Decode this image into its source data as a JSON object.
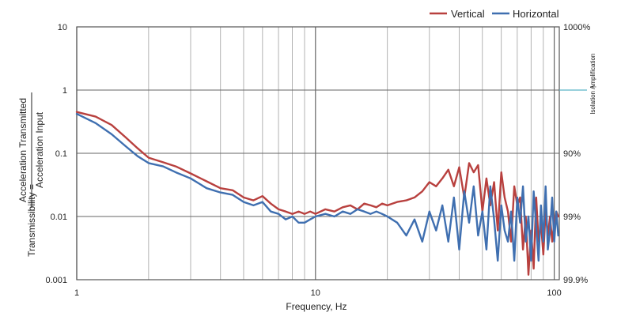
{
  "chart_data": {
    "type": "line",
    "xscale": "log",
    "yscale": "log",
    "xlim": [
      1,
      105
    ],
    "ylim": [
      0.001,
      10
    ],
    "xlabel": "Frequency, Hz",
    "ylabel_prefix": "Transmissibility =",
    "ylabel_numerator": "Acceleration Transmitted",
    "ylabel_denominator": "Acceleration Input",
    "x_ticks": [
      {
        "value": 1,
        "label": "1"
      },
      {
        "value": 10,
        "label": "10"
      },
      {
        "value": 100,
        "label": "100"
      }
    ],
    "y_ticks": [
      {
        "value": 10,
        "label": "10"
      },
      {
        "value": 1,
        "label": "1"
      },
      {
        "value": 0.1,
        "label": "0.1"
      },
      {
        "value": 0.01,
        "label": "0.01"
      },
      {
        "value": 0.001,
        "label": "0.001"
      }
    ],
    "right_ticks": [
      {
        "value": 10,
        "label": "1000%"
      },
      {
        "value": 0.1,
        "label": "90%"
      },
      {
        "value": 0.01,
        "label": "99%"
      },
      {
        "value": 0.001,
        "label": "99.9%"
      }
    ],
    "right_annotation": {
      "upper": "Amplification",
      "lower": "Isolation",
      "value": 1,
      "color": "#5bb3c6"
    },
    "legend_position": "top-right",
    "series": [
      {
        "name": "Vertical",
        "color": "#b8403e",
        "x": [
          1,
          1.2,
          1.4,
          1.6,
          1.8,
          2,
          2.3,
          2.6,
          3,
          3.5,
          4,
          4.5,
          5,
          5.5,
          6,
          6.5,
          7,
          7.5,
          8,
          8.5,
          9,
          9.5,
          10,
          11,
          12,
          13,
          14,
          15,
          16,
          17,
          18,
          19,
          20,
          22,
          24,
          26,
          28,
          30,
          32,
          34,
          36,
          38,
          40,
          42,
          44,
          46,
          48,
          50,
          52,
          54,
          56,
          58,
          60,
          62,
          64,
          66,
          68,
          70,
          72,
          74,
          76,
          78,
          80,
          82,
          84,
          86,
          88,
          90,
          92,
          94,
          96,
          98,
          100,
          102,
          104
        ],
        "values": [
          0.45,
          0.38,
          0.28,
          0.18,
          0.12,
          0.085,
          0.072,
          0.062,
          0.048,
          0.036,
          0.028,
          0.026,
          0.02,
          0.018,
          0.021,
          0.016,
          0.013,
          0.012,
          0.011,
          0.012,
          0.011,
          0.012,
          0.011,
          0.013,
          0.012,
          0.014,
          0.015,
          0.013,
          0.016,
          0.015,
          0.014,
          0.016,
          0.015,
          0.017,
          0.018,
          0.02,
          0.025,
          0.035,
          0.03,
          0.04,
          0.055,
          0.03,
          0.06,
          0.02,
          0.07,
          0.05,
          0.065,
          0.012,
          0.04,
          0.015,
          0.035,
          0.006,
          0.05,
          0.02,
          0.012,
          0.004,
          0.03,
          0.015,
          0.02,
          0.003,
          0.01,
          0.0012,
          0.006,
          0.0015,
          0.02,
          0.004,
          0.008,
          0.0025,
          0.012,
          0.005,
          0.01,
          0.004,
          0.008,
          0.012,
          0.01
        ]
      },
      {
        "name": "Horizontal",
        "color": "#3f6fb0",
        "x": [
          1,
          1.2,
          1.4,
          1.6,
          1.8,
          2,
          2.3,
          2.6,
          3,
          3.5,
          4,
          4.5,
          5,
          5.5,
          6,
          6.5,
          7,
          7.5,
          8,
          8.5,
          9,
          9.5,
          10,
          11,
          12,
          13,
          14,
          15,
          16,
          17,
          18,
          19,
          20,
          22,
          24,
          26,
          28,
          30,
          32,
          34,
          36,
          38,
          40,
          42,
          44,
          46,
          48,
          50,
          52,
          54,
          56,
          58,
          60,
          62,
          64,
          66,
          68,
          70,
          72,
          74,
          76,
          78,
          80,
          82,
          84,
          86,
          88,
          90,
          92,
          94,
          96,
          98,
          100,
          102,
          104
        ],
        "values": [
          0.42,
          0.3,
          0.2,
          0.13,
          0.09,
          0.07,
          0.062,
          0.05,
          0.04,
          0.028,
          0.024,
          0.022,
          0.017,
          0.015,
          0.017,
          0.012,
          0.011,
          0.009,
          0.01,
          0.008,
          0.008,
          0.009,
          0.01,
          0.011,
          0.01,
          0.012,
          0.011,
          0.013,
          0.012,
          0.011,
          0.012,
          0.011,
          0.01,
          0.008,
          0.005,
          0.009,
          0.004,
          0.012,
          0.006,
          0.015,
          0.004,
          0.02,
          0.003,
          0.025,
          0.008,
          0.03,
          0.005,
          0.012,
          0.003,
          0.03,
          0.009,
          0.002,
          0.015,
          0.006,
          0.004,
          0.012,
          0.002,
          0.02,
          0.008,
          0.03,
          0.004,
          0.01,
          0.002,
          0.025,
          0.007,
          0.002,
          0.015,
          0.004,
          0.03,
          0.003,
          0.006,
          0.02,
          0.004,
          0.012,
          0.005
        ]
      }
    ]
  }
}
